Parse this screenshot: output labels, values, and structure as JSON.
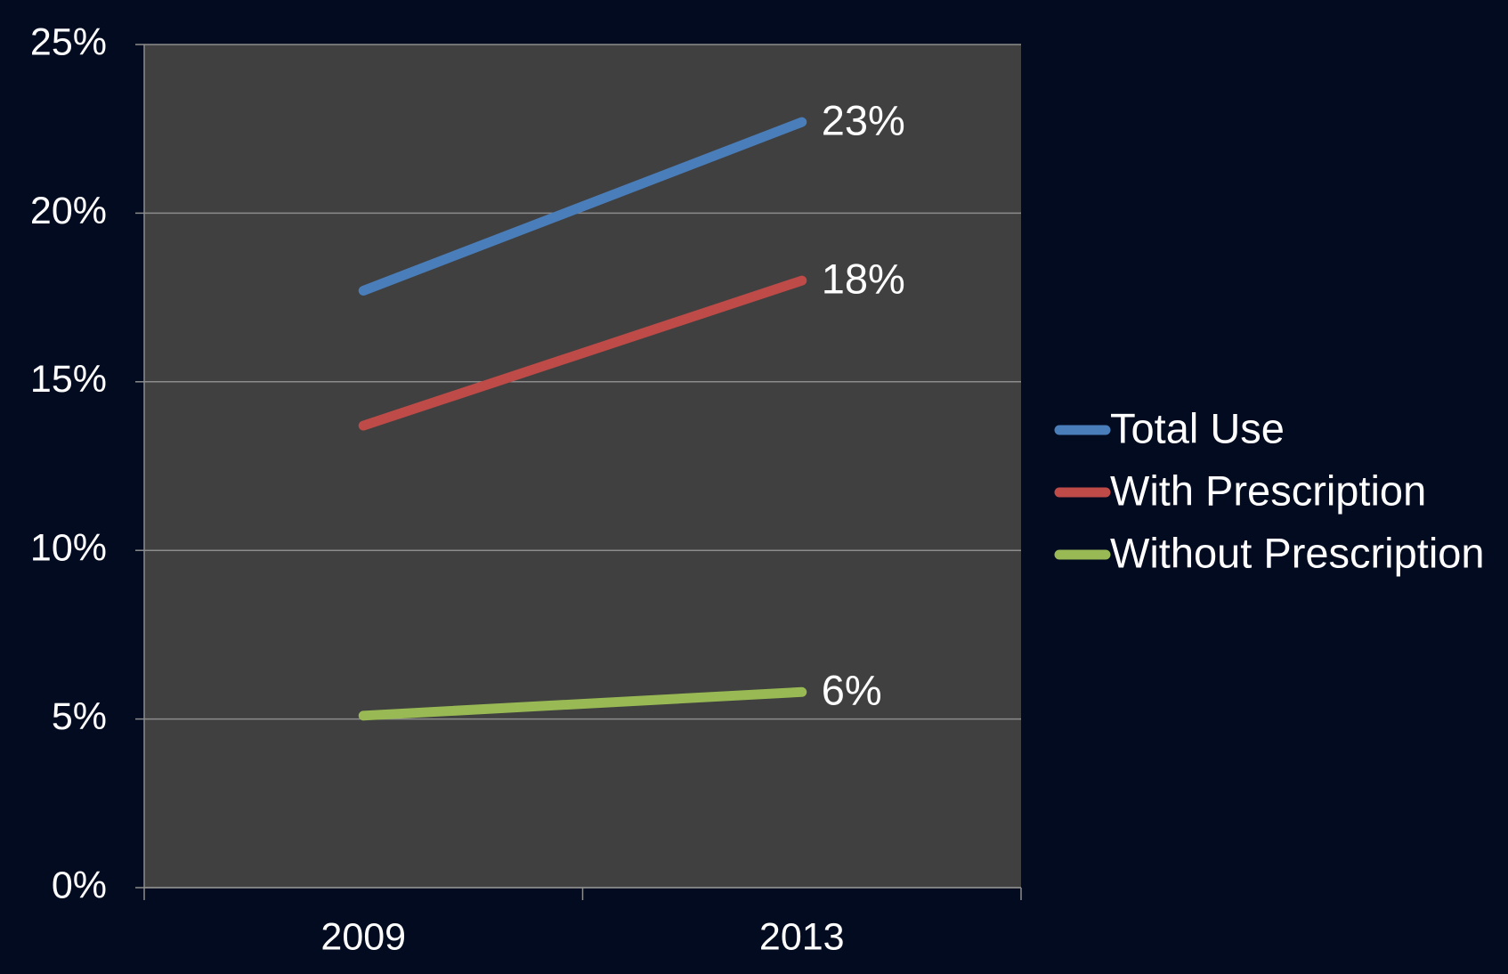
{
  "chart_data": {
    "type": "line",
    "categories": [
      "2009",
      "2013"
    ],
    "series": [
      {
        "name": "Total Use",
        "color": "#4a7ebb",
        "values": [
          17.7,
          22.7
        ],
        "value_labels": [
          null,
          "23%"
        ]
      },
      {
        "name": "With Prescription",
        "color": "#be4b48",
        "values": [
          13.7,
          18.0
        ],
        "value_labels": [
          null,
          "18%"
        ]
      },
      {
        "name": "Without Prescription",
        "color": "#98b954",
        "values": [
          5.1,
          5.8
        ],
        "value_labels": [
          null,
          "6%"
        ]
      }
    ],
    "ylim": [
      0,
      25
    ],
    "yticks": [
      {
        "value": 0,
        "label": "0%"
      },
      {
        "value": 5,
        "label": "5%"
      },
      {
        "value": 10,
        "label": "10%"
      },
      {
        "value": 15,
        "label": "15%"
      },
      {
        "value": 20,
        "label": "20%"
      },
      {
        "value": 25,
        "label": "25%"
      }
    ],
    "grid": true,
    "legend": "right"
  }
}
